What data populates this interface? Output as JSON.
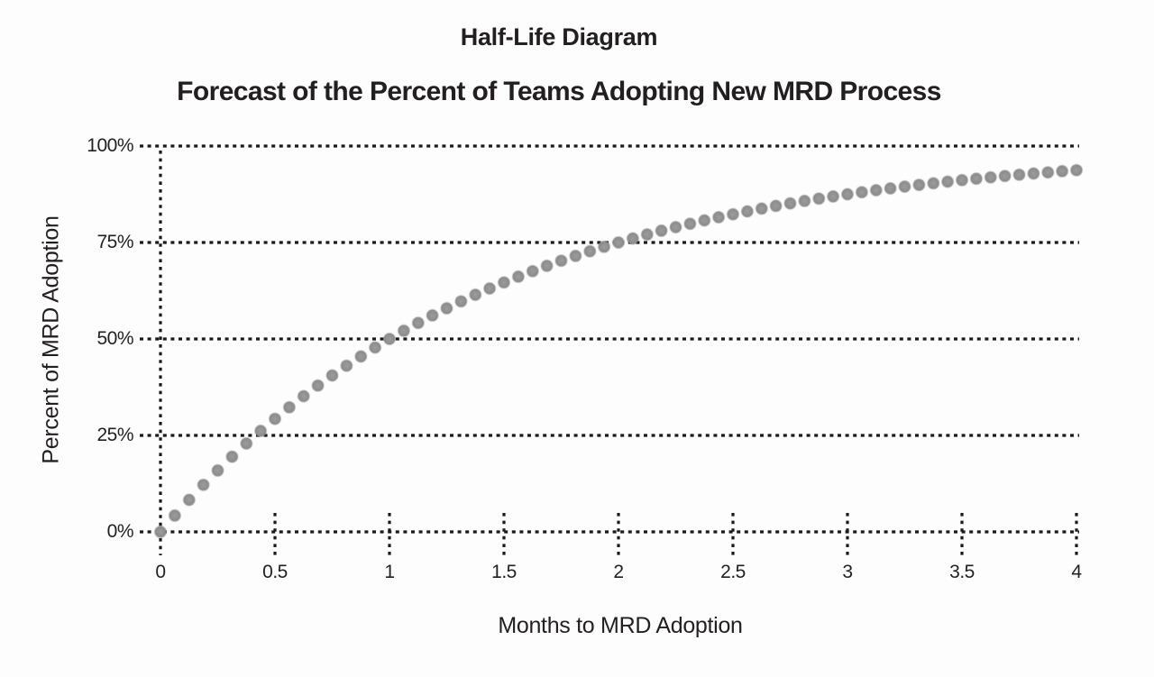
{
  "chart_data": {
    "type": "scatter",
    "title": "Half-Life Diagram",
    "subtitle": "Forecast of the Percent of Teams Adopting New MRD Process",
    "xlabel": "Months to MRD Adoption",
    "ylabel": "Percent of MRD Adoption",
    "xlim": [
      0,
      4
    ],
    "ylim": [
      0,
      100
    ],
    "x_tick_values": [
      0,
      0.5,
      1,
      1.5,
      2,
      2.5,
      3,
      3.5,
      4
    ],
    "x_tick_labels": [
      "0",
      "0.5",
      "1",
      "1.5",
      "2",
      "2.5",
      "3",
      "3.5",
      "4"
    ],
    "y_tick_values": [
      100,
      75,
      50,
      25,
      0
    ],
    "y_tick_labels": [
      "100%",
      "75%",
      "50%",
      "25%",
      "0%"
    ],
    "grid": "dotted black horizontal lines at every y tick; dotted vertical axis line at x=0; short dotted tick marks crossing the 0% baseline at each x tick",
    "legend": "none",
    "model": "y = 1 - 0.5^x (adoption half-life = 1 month)",
    "colors": {
      "dot": "#8f8f8f",
      "dot_edge": "#858585",
      "grid": "#1a1a1a",
      "text": "#231f20"
    },
    "series": [
      {
        "name": "Percent of teams adopting new MRD process",
        "x": [
          0,
          0.0625,
          0.125,
          0.1875,
          0.25,
          0.3125,
          0.375,
          0.4375,
          0.5,
          0.5625,
          0.625,
          0.6875,
          0.75,
          0.8125,
          0.875,
          0.9375,
          1,
          1.0625,
          1.125,
          1.1875,
          1.25,
          1.3125,
          1.375,
          1.4375,
          1.5,
          1.5625,
          1.625,
          1.6875,
          1.75,
          1.8125,
          1.875,
          1.9375,
          2,
          2.0625,
          2.125,
          2.1875,
          2.25,
          2.3125,
          2.375,
          2.4375,
          2.5,
          2.5625,
          2.625,
          2.6875,
          2.75,
          2.8125,
          2.875,
          2.9375,
          3,
          3.0625,
          3.125,
          3.1875,
          3.25,
          3.3125,
          3.375,
          3.4375,
          3.5,
          3.5625,
          3.625,
          3.6875,
          3.75,
          3.8125,
          3.875,
          3.9375,
          4
        ],
        "y_percent": [
          0,
          4.24,
          8.3,
          12.19,
          15.91,
          19.48,
          22.89,
          26.16,
          29.29,
          32.29,
          35.16,
          37.91,
          40.54,
          43.06,
          45.47,
          47.79,
          50,
          52.12,
          54.15,
          56.09,
          57.95,
          59.74,
          61.44,
          63.08,
          64.64,
          66.14,
          67.58,
          68.95,
          70.27,
          71.53,
          72.74,
          73.89,
          75,
          76.06,
          77.07,
          78.05,
          78.98,
          79.87,
          80.72,
          81.54,
          82.32,
          83.07,
          83.79,
          84.48,
          85.13,
          85.77,
          86.37,
          86.95,
          87.5,
          88.03,
          88.54,
          89.02,
          89.49,
          89.93,
          90.36,
          90.77,
          91.16,
          91.54,
          91.89,
          92.24,
          92.57,
          92.88,
          93.18,
          93.47,
          93.75
        ]
      }
    ]
  }
}
